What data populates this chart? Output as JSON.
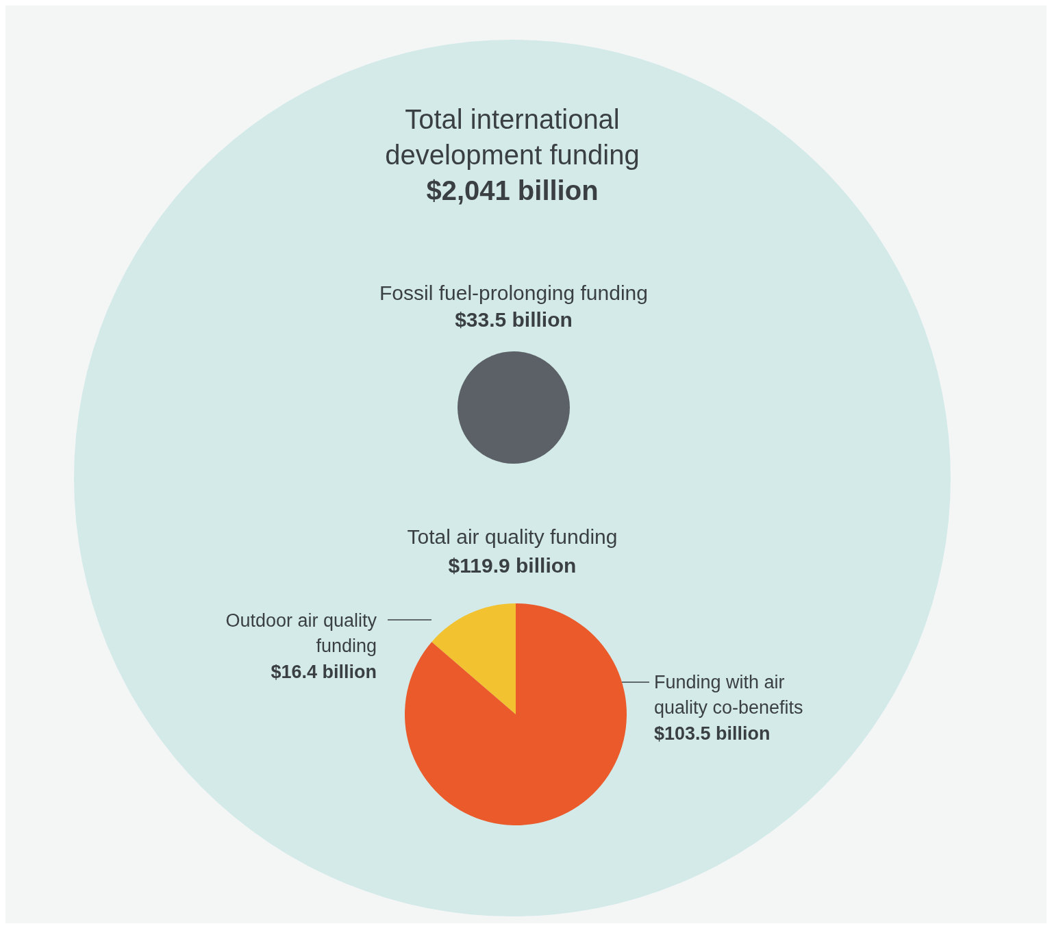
{
  "chart_data": [
    {
      "type": "other",
      "categories": [
        "Total international development funding",
        "Fossil fuel-prolonging funding"
      ],
      "values": [
        2041,
        33.5
      ],
      "value_labels": [
        "$2,041 billion",
        "$33.5 billion"
      ],
      "colors": [
        "#d3eae8",
        "#5b6166"
      ]
    },
    {
      "type": "pie",
      "title": "Total air quality funding",
      "subtitle": "$119.9 billion",
      "categories": [
        "Outdoor air quality funding",
        "Funding with air quality co-benefits"
      ],
      "values": [
        16.4,
        103.5
      ],
      "value_labels": [
        "$16.4 billion",
        "$103.5 billion"
      ],
      "colors": [
        "#f2c230",
        "#ea5a2a"
      ]
    }
  ]
}
